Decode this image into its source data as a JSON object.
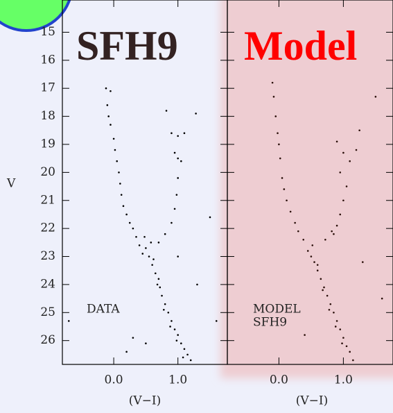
{
  "chart_data": [
    {
      "type": "scatter",
      "title": "SFH9",
      "annotation": [
        "DATA"
      ],
      "xlabel": "(V−I)",
      "ylabel": "V",
      "color": "#000000",
      "xlim": [
        -0.8,
        1.77
      ],
      "ylim": [
        26.85,
        13.85
      ],
      "xticks": [
        {
          "value": 0,
          "label": "0.0"
        },
        {
          "value": 1,
          "label": "1.0"
        }
      ],
      "yticks": [
        15,
        16,
        17,
        18,
        19,
        20,
        21,
        22,
        23,
        24,
        25,
        26
      ],
      "x": [
        -0.12,
        -0.05,
        -0.1,
        -0.08,
        -0.05,
        0.0,
        0.02,
        0.05,
        0.08,
        0.1,
        0.12,
        0.15,
        0.2,
        0.25,
        0.3,
        0.82,
        0.9,
        1.0,
        1.1,
        1.28,
        0.95,
        1.0,
        1.05,
        1.0,
        0.98,
        0.95,
        0.9,
        0.35,
        0.4,
        0.45,
        0.5,
        0.55,
        0.6,
        0.65,
        0.7,
        0.72,
        0.75,
        0.8,
        0.85,
        0.9,
        0.95,
        1.0,
        1.05,
        1.1,
        1.15,
        1.2,
        0.68,
        0.78,
        0.88,
        0.98,
        1.08,
        0.62,
        0.58,
        0.48,
        0.7,
        0.8,
        1.5,
        0.5,
        0.3,
        -0.7,
        1.6,
        0.2,
        1.3,
        1.0
      ],
      "values": [
        17.0,
        17.1,
        17.6,
        18.0,
        18.3,
        18.8,
        19.2,
        19.6,
        20.0,
        20.4,
        20.8,
        21.2,
        21.5,
        21.8,
        22.0,
        17.8,
        18.6,
        18.7,
        18.6,
        17.9,
        19.3,
        19.5,
        19.6,
        20.2,
        20.8,
        21.3,
        21.8,
        22.3,
        22.6,
        22.9,
        22.7,
        23.0,
        23.3,
        23.6,
        23.8,
        24.1,
        24.4,
        24.7,
        25.0,
        25.3,
        25.6,
        25.8,
        26.1,
        26.3,
        26.5,
        26.7,
        24.0,
        24.9,
        25.5,
        26.0,
        26.6,
        23.1,
        22.5,
        22.3,
        22.5,
        22.2,
        21.6,
        26.1,
        25.9,
        25.3,
        25.3,
        26.4,
        24.0,
        23.0
      ]
    },
    {
      "type": "scatter",
      "title": "Model",
      "annotation": [
        "MODEL",
        "SFH9"
      ],
      "xlabel": "(V−I)",
      "color": "#2a0f0a",
      "xlim": [
        -0.8,
        1.77
      ],
      "ylim": [
        26.85,
        13.85
      ],
      "xticks": [
        {
          "value": 0,
          "label": "0.0"
        },
        {
          "value": 1,
          "label": "1.0"
        }
      ],
      "x": [
        -0.1,
        -0.08,
        -0.05,
        -0.02,
        0.0,
        0.02,
        0.05,
        0.08,
        0.12,
        0.18,
        0.25,
        0.3,
        0.9,
        1.0,
        1.1,
        1.2,
        1.25,
        0.95,
        1.05,
        1.0,
        0.95,
        0.9,
        0.85,
        0.38,
        0.45,
        0.5,
        0.55,
        0.6,
        0.65,
        0.7,
        0.75,
        0.8,
        0.85,
        0.9,
        0.95,
        1.0,
        1.05,
        1.1,
        1.15,
        0.68,
        0.78,
        0.88,
        0.98,
        0.6,
        0.52,
        0.72,
        0.82,
        1.5,
        1.6,
        0.4,
        1.3
      ],
      "values": [
        16.8,
        17.3,
        18.0,
        18.6,
        19.0,
        19.5,
        20.2,
        20.6,
        21.0,
        21.4,
        21.8,
        22.1,
        18.9,
        19.3,
        19.6,
        19.2,
        18.5,
        20.0,
        20.5,
        21.0,
        21.5,
        21.9,
        22.2,
        22.4,
        22.8,
        23.0,
        23.2,
        23.5,
        23.8,
        24.1,
        24.4,
        24.7,
        25.0,
        25.3,
        25.6,
        25.9,
        26.2,
        26.4,
        26.7,
        24.2,
        24.9,
        25.5,
        26.1,
        23.3,
        22.6,
        22.4,
        22.1,
        17.3,
        24.5,
        25.8,
        23.2
      ]
    }
  ]
}
